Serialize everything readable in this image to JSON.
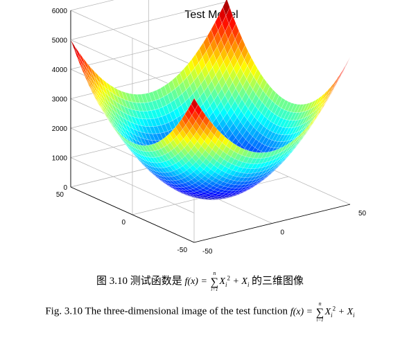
{
  "chart_data": {
    "type": "surface",
    "title": "Test Model",
    "function": "x^2 + y^2 + x + y (approx.)",
    "x_range": [
      -50,
      50
    ],
    "y_range": [
      -50,
      50
    ],
    "z_range": [
      0,
      6000
    ],
    "x_ticks": [
      -50,
      0,
      50
    ],
    "y_ticks": [
      -50,
      0,
      50
    ],
    "z_ticks": [
      0,
      1000,
      2000,
      3000,
      4000,
      5000,
      6000
    ],
    "x_tick_labels": [
      "-50",
      "0",
      "50"
    ],
    "y_tick_labels": [
      "-50",
      "0",
      "50"
    ],
    "z_tick_labels": [
      "0",
      "1000",
      "2000",
      "3000",
      "4000",
      "5000",
      "6000"
    ],
    "grid": true,
    "colormap": "jet",
    "colors": [
      "#00008f",
      "#0000ff",
      "#00ffff",
      "#ffff00",
      "#ff0000",
      "#800000"
    ]
  },
  "caption": {
    "zh_prefix": "图 3.10  测试函数是",
    "zh_suffix": "的三维图像",
    "en_prefix": "Fig. 3.10 The three-dimensional image of the test function",
    "formula": {
      "lhs": "f(x) = ",
      "sum": "∑",
      "upper": "n",
      "lower": "i=1",
      "var": "X",
      "sub": "i",
      "sup": "2",
      "plus": " + X",
      "sub2": "i"
    }
  }
}
